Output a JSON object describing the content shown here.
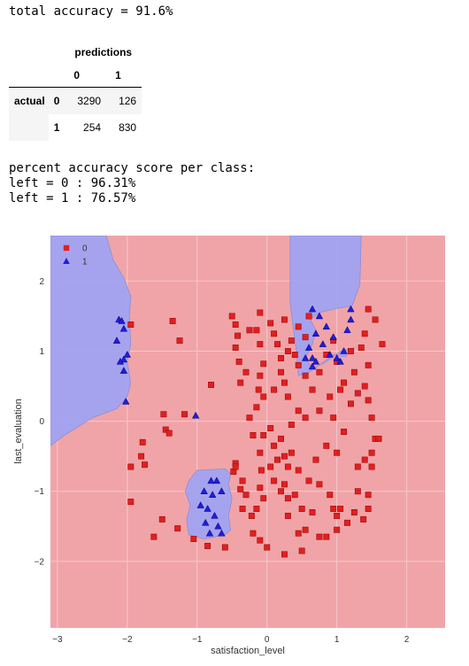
{
  "summary": {
    "total_accuracy_text": "total accuracy = 91.6%"
  },
  "confusion_matrix": {
    "column_group_label": "predictions",
    "row_group_label": "actual",
    "columns": [
      "0",
      "1"
    ],
    "rows": [
      {
        "label": "0",
        "cells": [
          "3290",
          "126"
        ]
      },
      {
        "label": "1",
        "cells": [
          "254",
          "830"
        ]
      }
    ]
  },
  "class_report": {
    "heading": "percent accuracy score per class:",
    "lines": [
      "left = 0 : 96.31%",
      "left = 1 : 76.57%"
    ]
  },
  "chart_data": {
    "type": "scatter",
    "xlabel": "satisfaction_level",
    "ylabel": "last_evaluation",
    "xlim": [
      -3.1,
      2.55
    ],
    "ylim": [
      -2.95,
      2.65
    ],
    "xticks": [
      -3,
      -2,
      -1,
      0,
      1,
      2
    ],
    "yticks": [
      -2,
      -1,
      0,
      1,
      2
    ],
    "grid": true,
    "legend_position": "top-left",
    "background_color": "#f0a4a8",
    "grid_color": "#f7c8cb",
    "region_color": "#a3a3f2",
    "region_edge_color": "#8c8cd6",
    "decision_regions": [
      {
        "class": "1",
        "polygon": [
          [
            -3.1,
            2.65
          ],
          [
            -2.3,
            2.65
          ],
          [
            -2.2,
            2.3
          ],
          [
            -2.05,
            2.05
          ],
          [
            -1.95,
            1.78
          ],
          [
            -1.97,
            1.5
          ],
          [
            -1.95,
            1.1
          ],
          [
            -2.0,
            0.85
          ],
          [
            -1.95,
            0.55
          ],
          [
            -2.0,
            0.35
          ],
          [
            -2.15,
            0.18
          ],
          [
            -2.5,
            0.05
          ],
          [
            -2.9,
            -0.2
          ],
          [
            -3.1,
            -0.35
          ]
        ]
      },
      {
        "class": "1",
        "polygon": [
          [
            0.33,
            2.65
          ],
          [
            1.35,
            2.65
          ],
          [
            1.33,
            1.95
          ],
          [
            1.22,
            1.65
          ],
          [
            0.95,
            1.6
          ],
          [
            0.75,
            1.55
          ],
          [
            0.62,
            1.45
          ],
          [
            0.7,
            1.3
          ],
          [
            0.65,
            1.1
          ],
          [
            0.55,
            0.9
          ],
          [
            0.65,
            0.75
          ],
          [
            0.85,
            0.85
          ],
          [
            1.05,
            1.0
          ],
          [
            1.25,
            1.05
          ],
          [
            1.12,
            0.92
          ],
          [
            0.95,
            0.95
          ],
          [
            0.75,
            0.8
          ],
          [
            0.6,
            0.7
          ],
          [
            0.45,
            0.65
          ],
          [
            0.42,
            1.0
          ],
          [
            0.38,
            1.3
          ],
          [
            0.33,
            1.7
          ]
        ]
      },
      {
        "class": "1",
        "polygon": [
          [
            -1.0,
            -0.7
          ],
          [
            -0.6,
            -0.68
          ],
          [
            -0.52,
            -0.75
          ],
          [
            -0.55,
            -0.9
          ],
          [
            -0.5,
            -1.1
          ],
          [
            -0.55,
            -1.35
          ],
          [
            -0.52,
            -1.55
          ],
          [
            -0.6,
            -1.62
          ],
          [
            -0.75,
            -1.65
          ],
          [
            -0.9,
            -1.68
          ],
          [
            -1.12,
            -1.62
          ],
          [
            -1.15,
            -1.4
          ],
          [
            -1.1,
            -1.2
          ],
          [
            -1.17,
            -1.0
          ],
          [
            -1.12,
            -0.85
          ]
        ]
      }
    ],
    "series": [
      {
        "name": "0",
        "marker": "square",
        "color": "#e02020",
        "points": [
          [
            -1.95,
            1.38
          ],
          [
            -1.35,
            1.43
          ],
          [
            -1.25,
            1.15
          ],
          [
            -0.8,
            0.52
          ],
          [
            -1.48,
            0.1
          ],
          [
            -1.18,
            0.1
          ],
          [
            -1.45,
            -0.12
          ],
          [
            -1.4,
            -0.17
          ],
          [
            -1.78,
            -0.3
          ],
          [
            -1.8,
            -0.5
          ],
          [
            -1.75,
            -0.62
          ],
          [
            -1.95,
            -0.65
          ],
          [
            -1.95,
            -1.15
          ],
          [
            -1.62,
            -1.65
          ],
          [
            -1.28,
            -1.53
          ],
          [
            -1.05,
            -1.68
          ],
          [
            -0.85,
            -1.78
          ],
          [
            -0.45,
            -0.6
          ],
          [
            -0.48,
            -0.72
          ],
          [
            -0.35,
            -0.85
          ],
          [
            -0.3,
            -1.05
          ],
          [
            -0.35,
            -1.25
          ],
          [
            -0.22,
            -1.35
          ],
          [
            -0.15,
            -1.25
          ],
          [
            -0.2,
            -1.6
          ],
          [
            -0.1,
            -1.7
          ],
          [
            0.0,
            -1.8
          ],
          [
            0.25,
            -1.9
          ],
          [
            -0.45,
            -0.65
          ],
          [
            -0.38,
            -0.97
          ],
          [
            -0.1,
            -0.95
          ],
          [
            -0.08,
            -0.7
          ],
          [
            0.05,
            -0.65
          ],
          [
            0.1,
            -0.85
          ],
          [
            0.25,
            -0.9
          ],
          [
            0.3,
            -0.65
          ],
          [
            0.2,
            -1.0
          ],
          [
            0.4,
            -1.05
          ],
          [
            0.3,
            -1.1
          ],
          [
            0.3,
            -1.35
          ],
          [
            0.5,
            -1.25
          ],
          [
            0.55,
            -1.55
          ],
          [
            0.65,
            -1.3
          ],
          [
            0.45,
            -1.6
          ],
          [
            0.5,
            -1.85
          ],
          [
            0.75,
            -0.9
          ],
          [
            0.9,
            -1.05
          ],
          [
            0.95,
            -1.25
          ],
          [
            1.0,
            -1.35
          ],
          [
            1.0,
            -1.55
          ],
          [
            0.85,
            -1.65
          ],
          [
            1.05,
            -1.25
          ],
          [
            1.15,
            -1.45
          ],
          [
            1.25,
            -1.3
          ],
          [
            1.3,
            -1.0
          ],
          [
            1.38,
            -1.4
          ],
          [
            1.45,
            -1.25
          ],
          [
            1.45,
            -1.05
          ],
          [
            1.5,
            -0.65
          ],
          [
            1.4,
            -0.55
          ],
          [
            1.3,
            -0.65
          ],
          [
            1.0,
            -0.45
          ],
          [
            0.85,
            -0.35
          ],
          [
            0.7,
            -0.55
          ],
          [
            0.6,
            -0.85
          ],
          [
            0.45,
            -0.7
          ],
          [
            0.35,
            -0.45
          ],
          [
            0.2,
            -0.25
          ],
          [
            0.05,
            -0.1
          ],
          [
            -0.05,
            -0.2
          ],
          [
            0.1,
            -0.35
          ],
          [
            0.25,
            -0.5
          ],
          [
            -0.1,
            -0.45
          ],
          [
            -0.2,
            -0.2
          ],
          [
            -0.25,
            0.05
          ],
          [
            -0.15,
            0.2
          ],
          [
            -0.05,
            0.35
          ],
          [
            0.1,
            0.45
          ],
          [
            0.3,
            0.35
          ],
          [
            0.45,
            0.15
          ],
          [
            0.55,
            0.05
          ],
          [
            0.35,
            -0.05
          ],
          [
            0.75,
            0.15
          ],
          [
            0.9,
            0.35
          ],
          [
            1.05,
            0.45
          ],
          [
            0.95,
            0.05
          ],
          [
            1.1,
            -0.15
          ],
          [
            1.2,
            0.25
          ],
          [
            1.3,
            0.4
          ],
          [
            1.4,
            0.5
          ],
          [
            1.45,
            0.3
          ],
          [
            1.5,
            0.05
          ],
          [
            1.55,
            -0.25
          ],
          [
            1.5,
            -0.45
          ],
          [
            1.6,
            -0.25
          ],
          [
            -0.5,
            1.5
          ],
          [
            -0.45,
            1.38
          ],
          [
            -0.42,
            1.22
          ],
          [
            -0.45,
            1.05
          ],
          [
            -0.4,
            0.85
          ],
          [
            -0.38,
            0.55
          ],
          [
            -0.3,
            0.7
          ],
          [
            -0.25,
            1.3
          ],
          [
            -0.1,
            1.55
          ],
          [
            -0.15,
            1.3
          ],
          [
            -0.1,
            1.1
          ],
          [
            -0.05,
            0.82
          ],
          [
            -0.1,
            0.65
          ],
          [
            -0.12,
            0.45
          ],
          [
            0.05,
            1.4
          ],
          [
            0.1,
            1.25
          ],
          [
            0.15,
            1.1
          ],
          [
            0.2,
            0.9
          ],
          [
            0.2,
            0.7
          ],
          [
            0.25,
            0.55
          ],
          [
            0.25,
            1.45
          ],
          [
            0.3,
            1.0
          ],
          [
            0.35,
            1.15
          ],
          [
            0.4,
            0.95
          ],
          [
            0.45,
            0.8
          ],
          [
            0.55,
            0.65
          ],
          [
            0.45,
            1.35
          ],
          [
            0.55,
            1.2
          ],
          [
            0.6,
            1.5
          ],
          [
            0.65,
            0.45
          ],
          [
            0.75,
            0.7
          ],
          [
            1.0,
            0.85
          ],
          [
            1.1,
            0.55
          ],
          [
            1.25,
            0.7
          ],
          [
            1.45,
            0.8
          ],
          [
            1.35,
            1.05
          ],
          [
            1.4,
            1.25
          ],
          [
            1.55,
            1.45
          ],
          [
            1.45,
            1.6
          ],
          [
            1.65,
            1.1
          ],
          [
            1.2,
            1.0
          ],
          [
            0.95,
            1.15
          ],
          [
            0.85,
            0.95
          ],
          [
            -1.5,
            -1.4
          ],
          [
            -0.6,
            -1.8
          ],
          [
            -0.05,
            -1.1
          ],
          [
            0.75,
            -1.65
          ],
          [
            0.15,
            -0.55
          ]
        ]
      },
      {
        "name": "1",
        "marker": "triangle",
        "color": "#1f1fd6",
        "points": [
          [
            -2.12,
            1.45
          ],
          [
            -2.08,
            1.43
          ],
          [
            -2.05,
            1.32
          ],
          [
            -2.15,
            1.15
          ],
          [
            -2.05,
            0.88
          ],
          [
            -2.1,
            0.85
          ],
          [
            -2.0,
            0.95
          ],
          [
            -2.05,
            0.72
          ],
          [
            -2.02,
            0.28
          ],
          [
            -1.02,
            0.08
          ],
          [
            -0.8,
            -0.85
          ],
          [
            -0.72,
            -0.85
          ],
          [
            -0.9,
            -1.0
          ],
          [
            -0.78,
            -1.05
          ],
          [
            -0.65,
            -1.0
          ],
          [
            -0.95,
            -1.2
          ],
          [
            -0.85,
            -1.25
          ],
          [
            -0.75,
            -1.35
          ],
          [
            -0.88,
            -1.45
          ],
          [
            -0.82,
            -1.6
          ],
          [
            -0.7,
            -1.5
          ],
          [
            -0.65,
            -1.6
          ],
          [
            0.65,
            1.6
          ],
          [
            0.75,
            1.5
          ],
          [
            0.85,
            1.35
          ],
          [
            0.95,
            1.2
          ],
          [
            0.7,
            1.25
          ],
          [
            0.6,
            1.05
          ],
          [
            0.65,
            0.9
          ],
          [
            0.55,
            0.9
          ],
          [
            0.7,
            0.85
          ],
          [
            0.9,
            0.95
          ],
          [
            1.05,
            0.85
          ],
          [
            1.1,
            1.0
          ],
          [
            1.2,
            1.6
          ],
          [
            1.2,
            1.45
          ],
          [
            0.65,
            0.78
          ],
          [
            0.8,
            1.1
          ],
          [
            1.0,
            0.9
          ],
          [
            1.15,
            1.3
          ]
        ]
      }
    ]
  }
}
